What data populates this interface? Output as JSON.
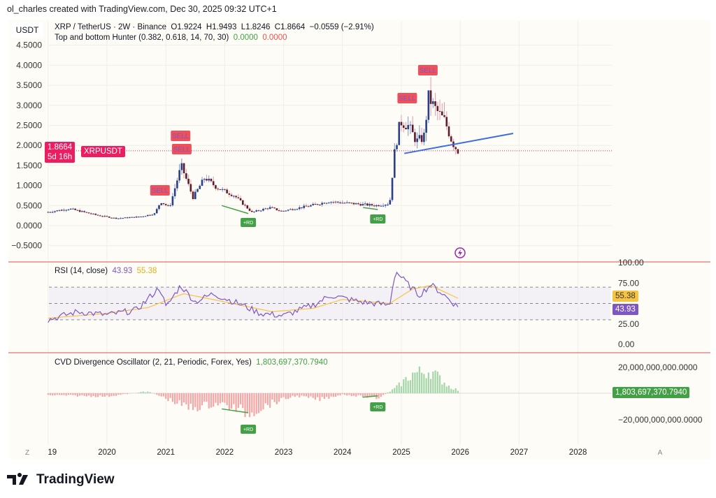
{
  "credit": "ol_charles created with TradingView.com, Dec 30, 2025 09:32 UTC+1",
  "quote_currency": "USDT",
  "symbol_line": "XRP / TetherUS · 2W · Binance",
  "ohlc": {
    "open": "O1.9224",
    "high": "H1.9493",
    "low": "L1.8246",
    "close": "C1.8664",
    "change": "−0.0559 (−2.91%)"
  },
  "indicator": {
    "name": "Top and bottom Hunter (0.382, 0.618, 14, 70, 30)",
    "v1": "0.0000",
    "v2": "0.0000"
  },
  "price_tag": {
    "symbol": "XRPUSDT",
    "price": "1.8664",
    "countdown": "5d 16h"
  },
  "price_axis": [
    "4.5000",
    "4.0000",
    "3.5000",
    "3.0000",
    "2.5000",
    "2.0000",
    "1.5000",
    "1.0000",
    "0.5000",
    "0.0000",
    "−0.5000"
  ],
  "time_axis": [
    "19",
    "2020",
    "2021",
    "2022",
    "2023",
    "2024",
    "2025",
    "2026",
    "2027",
    "2028"
  ],
  "time_axis_buttons": {
    "left": "Z",
    "right": "A"
  },
  "signals": {
    "sell": "SELL",
    "rd": "+RD"
  },
  "rsi": {
    "label": "RSI (14, close)",
    "value": "43.93",
    "ma": "55.38",
    "axis": [
      "100.00",
      "75.00",
      "25.00",
      "0.00"
    ]
  },
  "cvd": {
    "label": "CVD Divergence Oscillator (2, 21, Periodic, Forex, Yes)",
    "value": "1,803,697,370.7940",
    "axis": [
      "20,000,000,000.0000",
      "−20,000,000,000.0000"
    ]
  },
  "brand": "TradingView",
  "colors": {
    "up": "#2b3f86",
    "down": "#5b1c2c",
    "sell": "#f0505a",
    "rd": "#43a047",
    "trend": "#3d6ee0",
    "rsi": "#7e57c2",
    "rsi_ma": "#f5c542",
    "cvd_pos": "#a5d6a7",
    "cvd_neg": "#f4a6a6",
    "price_tag": "#e91e63"
  },
  "chart_data": {
    "type": "candlestick",
    "interval": "2W",
    "price_path": [
      [
        2019.0,
        0.33
      ],
      [
        2019.4,
        0.42
      ],
      [
        2019.9,
        0.25
      ],
      [
        2020.2,
        0.18
      ],
      [
        2020.6,
        0.22
      ],
      [
        2020.85,
        0.3
      ],
      [
        2020.95,
        0.6
      ],
      [
        2021.1,
        0.45
      ],
      [
        2021.3,
        1.5
      ],
      [
        2021.5,
        0.7
      ],
      [
        2021.7,
        1.2
      ],
      [
        2021.9,
        0.95
      ],
      [
        2022.2,
        0.75
      ],
      [
        2022.5,
        0.33
      ],
      [
        2022.8,
        0.45
      ],
      [
        2023.0,
        0.36
      ],
      [
        2023.5,
        0.5
      ],
      [
        2023.8,
        0.6
      ],
      [
        2024.2,
        0.55
      ],
      [
        2024.6,
        0.5
      ],
      [
        2024.84,
        0.55
      ],
      [
        2024.92,
        1.8
      ],
      [
        2025.02,
        2.6
      ],
      [
        2025.15,
        2.5
      ],
      [
        2025.3,
        2.1
      ],
      [
        2025.42,
        2.2
      ],
      [
        2025.5,
        3.2
      ],
      [
        2025.62,
        2.9
      ],
      [
        2025.78,
        2.6
      ],
      [
        2025.9,
        2.1
      ],
      [
        2025.99,
        1.87
      ]
    ],
    "sell_signals": [
      2020.9,
      2021.25,
      2021.27,
      2025.1,
      2025.45
    ],
    "rd_signals": [
      2022.4,
      2024.6
    ],
    "trendline": [
      [
        2025.05,
        1.8
      ],
      [
        2026.9,
        2.3
      ]
    ],
    "rsi_path": [
      [
        2019.0,
        30
      ],
      [
        2019.5,
        40
      ],
      [
        2020.0,
        36
      ],
      [
        2020.5,
        42
      ],
      [
        2020.9,
        70
      ],
      [
        2021.0,
        45
      ],
      [
        2021.25,
        72
      ],
      [
        2021.5,
        52
      ],
      [
        2021.8,
        62
      ],
      [
        2022.3,
        48
      ],
      [
        2022.6,
        38
      ],
      [
        2023.0,
        35
      ],
      [
        2023.5,
        48
      ],
      [
        2023.8,
        60
      ],
      [
        2024.3,
        52
      ],
      [
        2024.8,
        48
      ],
      [
        2024.9,
        90
      ],
      [
        2025.05,
        78
      ],
      [
        2025.3,
        60
      ],
      [
        2025.5,
        73
      ],
      [
        2025.7,
        62
      ],
      [
        2025.99,
        43.93
      ]
    ],
    "rsi_ma_path": [
      [
        2019.0,
        32
      ],
      [
        2020.0,
        38
      ],
      [
        2020.7,
        45
      ],
      [
        2021.3,
        62
      ],
      [
        2022.0,
        52
      ],
      [
        2022.8,
        40
      ],
      [
        2023.5,
        44
      ],
      [
        2024.0,
        55
      ],
      [
        2024.8,
        50
      ],
      [
        2025.2,
        68
      ],
      [
        2025.5,
        72
      ],
      [
        2025.99,
        55.38
      ]
    ],
    "cvd_path": [
      [
        2019.0,
        -1500000000.0
      ],
      [
        2020.0,
        -2500000000.0
      ],
      [
        2020.7,
        1500000000.0
      ],
      [
        2021.0,
        -4000000000.0
      ],
      [
        2021.4,
        -12000000000.0
      ],
      [
        2021.9,
        -8000000000.0
      ],
      [
        2022.4,
        -16000000000.0
      ],
      [
        2022.8,
        -8000000000.0
      ],
      [
        2023.2,
        -2000000000.0
      ],
      [
        2023.6,
        -5000000000.0
      ],
      [
        2024.0,
        -1000000000.0
      ],
      [
        2024.6,
        -4000000000.0
      ],
      [
        2024.9,
        4000000000.0
      ],
      [
        2025.2,
        16000000000.0
      ],
      [
        2025.5,
        18000000000.0
      ],
      [
        2025.8,
        6000000000.0
      ],
      [
        2025.99,
        1800000000.0
      ]
    ]
  }
}
